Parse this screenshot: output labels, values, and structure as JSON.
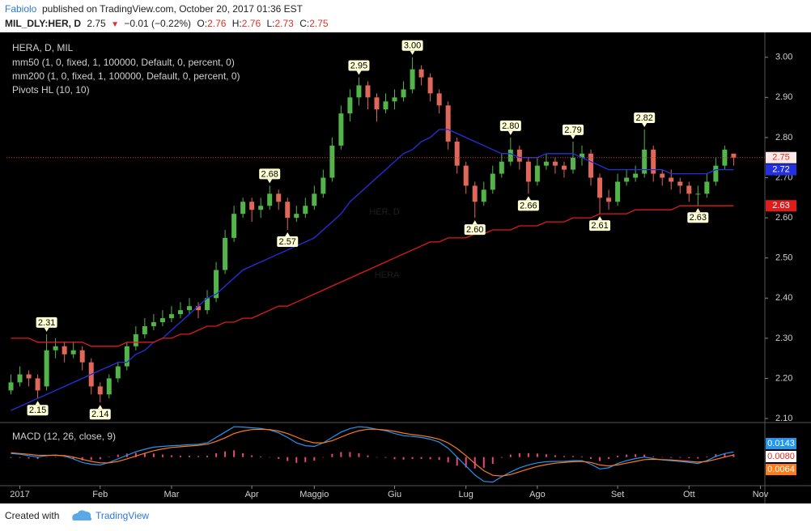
{
  "header": {
    "author": "Fabiolo",
    "published": "published on TradingView.com, October 20, 2017 01:36 EST",
    "symbol": "MIL_DLY:HER, D",
    "arrow": "▼",
    "change": "−0.01 (−0.22%)",
    "o": "O:",
    "h": "H:",
    "l": "L:",
    "c": "C:"
  },
  "chart_data": [
    {
      "type": "candlestick",
      "title": "HERA, D, MIL",
      "watermark": "HER, D",
      "watermark_sub": "HERA",
      "pivot_name": "Pivots HL (10, 10)",
      "up_color": "#53b44a",
      "down_color": "#e0685a",
      "categories": [
        null,
        "2017",
        null,
        null,
        null,
        null,
        null,
        null,
        null,
        null,
        "Feb",
        null,
        null,
        null,
        null,
        null,
        null,
        null,
        "Mar",
        null,
        null,
        null,
        null,
        null,
        null,
        null,
        null,
        "Apr",
        null,
        null,
        null,
        null,
        null,
        null,
        "Maggio",
        null,
        null,
        null,
        null,
        null,
        null,
        null,
        null,
        "Giu",
        null,
        null,
        null,
        null,
        null,
        null,
        null,
        "Lug",
        null,
        null,
        null,
        null,
        null,
        null,
        null,
        "Ago",
        null,
        null,
        null,
        null,
        null,
        null,
        null,
        null,
        "Set",
        null,
        null,
        null,
        null,
        null,
        null,
        null,
        "Ott",
        null,
        null,
        null,
        null,
        null,
        null,
        null,
        "Nov"
      ],
      "open": [
        2.17,
        2.19,
        2.21,
        2.2,
        2.18,
        2.27,
        2.28,
        2.26,
        2.27,
        2.24,
        2.18,
        2.16,
        2.2,
        2.23,
        2.28,
        2.31,
        2.33,
        2.34,
        2.35,
        2.36,
        2.37,
        2.38,
        2.37,
        2.4,
        2.47,
        2.55,
        2.61,
        2.64,
        2.62,
        2.63,
        2.66,
        2.64,
        2.6,
        2.61,
        2.63,
        2.66,
        2.7,
        2.78,
        2.86,
        2.9,
        2.93,
        2.9,
        2.87,
        2.89,
        2.9,
        2.92,
        2.97,
        2.95,
        2.91,
        2.88,
        2.79,
        2.73,
        2.68,
        2.64,
        2.67,
        2.71,
        2.74,
        2.77,
        2.74,
        2.69,
        2.73,
        2.74,
        2.73,
        2.72,
        2.75,
        2.76,
        2.7,
        2.65,
        2.64,
        2.69,
        2.7,
        2.71,
        2.77,
        2.71,
        2.7,
        2.69,
        2.68,
        2.66,
        2.66,
        2.69,
        2.73,
        2.76,
        null,
        null,
        null
      ],
      "high": [
        2.21,
        2.23,
        2.22,
        2.21,
        2.31,
        2.3,
        2.29,
        2.29,
        2.28,
        2.25,
        2.19,
        2.21,
        2.24,
        2.29,
        2.33,
        2.35,
        2.36,
        2.37,
        2.38,
        2.39,
        2.4,
        2.39,
        2.42,
        2.49,
        2.57,
        2.63,
        2.65,
        2.65,
        2.65,
        2.68,
        2.67,
        2.65,
        2.63,
        2.65,
        2.68,
        2.72,
        2.8,
        2.88,
        2.92,
        2.95,
        2.94,
        2.91,
        2.91,
        2.92,
        2.94,
        3.0,
        2.98,
        2.96,
        2.92,
        2.89,
        2.8,
        2.74,
        2.69,
        2.69,
        2.73,
        2.76,
        2.8,
        2.78,
        2.75,
        2.75,
        2.76,
        2.75,
        2.74,
        2.79,
        2.78,
        2.77,
        2.71,
        2.67,
        2.71,
        2.72,
        2.73,
        2.82,
        2.78,
        2.72,
        2.72,
        2.7,
        2.69,
        2.68,
        2.71,
        2.75,
        2.78,
        2.76,
        null,
        null,
        null
      ],
      "low": [
        2.16,
        2.18,
        2.18,
        2.15,
        2.17,
        2.25,
        2.24,
        2.25,
        2.22,
        2.16,
        2.14,
        2.15,
        2.19,
        2.22,
        2.27,
        2.3,
        2.32,
        2.33,
        2.34,
        2.35,
        2.36,
        2.35,
        2.36,
        2.39,
        2.46,
        2.54,
        2.6,
        2.59,
        2.6,
        2.62,
        2.62,
        2.57,
        2.59,
        2.6,
        2.62,
        2.65,
        2.69,
        2.77,
        2.84,
        2.88,
        2.87,
        2.84,
        2.86,
        2.87,
        2.89,
        2.91,
        2.93,
        2.89,
        2.86,
        2.77,
        2.71,
        2.66,
        2.6,
        2.63,
        2.66,
        2.7,
        2.73,
        2.72,
        2.66,
        2.68,
        2.72,
        2.71,
        2.7,
        2.71,
        2.73,
        2.68,
        2.61,
        2.62,
        2.63,
        2.68,
        2.69,
        2.7,
        2.69,
        2.68,
        2.67,
        2.66,
        2.64,
        2.63,
        2.65,
        2.68,
        2.72,
        2.73,
        null,
        null,
        null
      ],
      "close": [
        2.19,
        2.21,
        2.2,
        2.17,
        2.27,
        2.28,
        2.26,
        2.27,
        2.24,
        2.18,
        2.16,
        2.2,
        2.23,
        2.28,
        2.31,
        2.33,
        2.34,
        2.35,
        2.36,
        2.37,
        2.38,
        2.37,
        2.4,
        2.47,
        2.55,
        2.61,
        2.64,
        2.62,
        2.63,
        2.66,
        2.64,
        2.6,
        2.61,
        2.63,
        2.66,
        2.7,
        2.78,
        2.86,
        2.9,
        2.93,
        2.9,
        2.87,
        2.89,
        2.9,
        2.92,
        2.97,
        2.95,
        2.91,
        2.88,
        2.79,
        2.73,
        2.68,
        2.64,
        2.67,
        2.71,
        2.74,
        2.77,
        2.74,
        2.69,
        2.73,
        2.74,
        2.73,
        2.72,
        2.75,
        2.76,
        2.7,
        2.65,
        2.64,
        2.69,
        2.7,
        2.71,
        2.77,
        2.71,
        2.7,
        2.69,
        2.68,
        2.66,
        2.66,
        2.69,
        2.73,
        2.77,
        2.75,
        null,
        null,
        null
      ],
      "series": [
        {
          "name": "mm50 (1, 0, fixed, 1, 100000, Default, 0, percent, 0)",
          "color": "#2430e0",
          "values": [
            2.12,
            2.13,
            2.14,
            2.15,
            2.16,
            2.17,
            2.18,
            2.19,
            2.2,
            2.21,
            2.22,
            2.23,
            2.24,
            2.24,
            2.26,
            2.27,
            2.29,
            2.3,
            2.32,
            2.34,
            2.36,
            2.38,
            2.4,
            2.41,
            2.43,
            2.45,
            2.47,
            2.48,
            2.49,
            2.5,
            2.51,
            2.52,
            2.53,
            2.54,
            2.55,
            2.57,
            2.59,
            2.61,
            2.64,
            2.66,
            2.68,
            2.7,
            2.72,
            2.74,
            2.76,
            2.77,
            2.79,
            2.8,
            2.82,
            2.82,
            2.81,
            2.8,
            2.79,
            2.78,
            2.77,
            2.76,
            2.76,
            2.75,
            2.75,
            2.75,
            2.76,
            2.76,
            2.76,
            2.76,
            2.75,
            2.74,
            2.73,
            2.72,
            2.72,
            2.72,
            2.72,
            2.72,
            2.72,
            2.72,
            2.71,
            2.71,
            2.71,
            2.71,
            2.71,
            2.72,
            2.72,
            2.72,
            null,
            null,
            null
          ]
        },
        {
          "name": "mm200 (1, 0, fixed, 1, 100000, Default, 0, percent, 0)",
          "color": "#e01b1b",
          "values": [
            2.3,
            2.3,
            2.3,
            2.29,
            2.29,
            2.29,
            2.29,
            2.29,
            2.29,
            2.28,
            2.28,
            2.28,
            2.28,
            2.29,
            2.29,
            2.29,
            2.29,
            2.3,
            2.3,
            2.31,
            2.31,
            2.32,
            2.33,
            2.33,
            2.34,
            2.34,
            2.35,
            2.35,
            2.36,
            2.37,
            2.38,
            2.38,
            2.39,
            2.4,
            2.41,
            2.42,
            2.43,
            2.44,
            2.45,
            2.46,
            2.47,
            2.48,
            2.49,
            2.5,
            2.51,
            2.52,
            2.53,
            2.54,
            2.54,
            2.55,
            2.55,
            2.55,
            2.56,
            2.56,
            2.57,
            2.57,
            2.57,
            2.58,
            2.58,
            2.58,
            2.59,
            2.59,
            2.59,
            2.6,
            2.6,
            2.6,
            2.61,
            2.61,
            2.61,
            2.61,
            2.62,
            2.62,
            2.62,
            2.62,
            2.62,
            2.63,
            2.63,
            2.63,
            2.63,
            2.63,
            2.63,
            2.63,
            null,
            null,
            null
          ]
        }
      ],
      "pivot_highs": [
        null,
        null,
        null,
        null,
        2.31,
        null,
        null,
        null,
        null,
        null,
        null,
        null,
        null,
        null,
        null,
        null,
        null,
        null,
        null,
        null,
        null,
        null,
        null,
        null,
        null,
        null,
        null,
        null,
        null,
        2.68,
        null,
        null,
        null,
        null,
        null,
        null,
        null,
        null,
        null,
        2.95,
        null,
        null,
        null,
        null,
        null,
        {
          "value": 3.0,
          "label": "3.00"
        },
        null,
        null,
        null,
        null,
        null,
        null,
        null,
        null,
        null,
        null,
        {
          "value": 2.8,
          "label": "2.80"
        },
        null,
        null,
        null,
        null,
        null,
        null,
        2.79,
        null,
        null,
        null,
        null,
        null,
        null,
        null,
        2.82,
        null,
        null,
        null,
        null,
        null,
        null,
        null,
        null,
        null,
        null,
        null,
        null,
        null
      ],
      "pivot_lows": [
        null,
        null,
        null,
        2.15,
        null,
        null,
        null,
        null,
        null,
        null,
        2.14,
        null,
        null,
        null,
        null,
        null,
        null,
        null,
        null,
        null,
        null,
        null,
        null,
        null,
        null,
        null,
        null,
        null,
        null,
        null,
        null,
        2.57,
        null,
        null,
        null,
        null,
        null,
        null,
        null,
        null,
        null,
        null,
        null,
        null,
        null,
        null,
        null,
        null,
        null,
        null,
        null,
        null,
        {
          "value": 2.6,
          "label": "2.60"
        },
        null,
        null,
        null,
        null,
        null,
        2.66,
        null,
        null,
        null,
        null,
        null,
        null,
        null,
        2.61,
        null,
        null,
        null,
        null,
        null,
        null,
        null,
        null,
        null,
        null,
        2.63,
        null,
        null,
        null,
        null,
        null,
        null,
        null
      ],
      "ylim": [
        2.09,
        3.06
      ],
      "yticks": [
        {
          "value": 2.1,
          "label": "2.10"
        },
        {
          "value": 2.2,
          "label": "2.20"
        },
        {
          "value": 2.3,
          "label": "2.30"
        },
        {
          "value": 2.4,
          "label": "2.40"
        },
        {
          "value": 2.5,
          "label": "2.50"
        },
        {
          "value": 2.6,
          "label": "2.60"
        },
        {
          "value": 2.7,
          "label": "2.70"
        },
        {
          "value": 2.8,
          "label": "2.80"
        },
        {
          "value": 2.9,
          "label": "2.90"
        },
        {
          "value": 3.0,
          "label": "3.00"
        }
      ]
    },
    {
      "type": "macd",
      "title": "MACD (12, 26, close, 9)",
      "ylim": [
        -0.08,
        0.09
      ],
      "macd": {
        "color": "#2196f3",
        "values": [
          0.01,
          0.008,
          0.004,
          0,
          0.004,
          0.006,
          0.003,
          -0.005,
          -0.015,
          -0.02,
          -0.022,
          -0.015,
          -0.005,
          0.005,
          0.015,
          0.022,
          0.028,
          0.03,
          0.032,
          0.033,
          0.035,
          0.036,
          0.04,
          0.055,
          0.07,
          0.085,
          0.084,
          0.082,
          0.08,
          0.076,
          0.068,
          0.055,
          0.04,
          0.032,
          0.03,
          0.04,
          0.055,
          0.07,
          0.08,
          0.085,
          0.083,
          0.078,
          0.074,
          0.066,
          0.06,
          0.058,
          0.055,
          0.05,
          0.042,
          0.025,
          0,
          -0.025,
          -0.05,
          -0.068,
          -0.07,
          -0.055,
          -0.042,
          -0.03,
          -0.022,
          -0.016,
          -0.013,
          -0.012,
          -0.012,
          -0.01,
          -0.01,
          -0.02,
          -0.033,
          -0.03,
          -0.018,
          -0.01,
          -0.004,
          0,
          -0.004,
          -0.008,
          -0.01,
          -0.012,
          -0.015,
          -0.018,
          -0.01,
          0.002,
          0.01,
          0.0143,
          null,
          null,
          null
        ]
      },
      "signal": {
        "color": "#ff7a1a",
        "values": [
          0.012,
          0.01,
          0.008,
          0.005,
          0.005,
          0.005,
          0.004,
          0,
          -0.006,
          -0.012,
          -0.016,
          -0.016,
          -0.012,
          -0.005,
          0.003,
          0.011,
          0.018,
          0.023,
          0.027,
          0.029,
          0.031,
          0.033,
          0.036,
          0.044,
          0.054,
          0.066,
          0.073,
          0.077,
          0.078,
          0.077,
          0.073,
          0.066,
          0.056,
          0.046,
          0.04,
          0.04,
          0.046,
          0.056,
          0.066,
          0.074,
          0.078,
          0.078,
          0.076,
          0.072,
          0.067,
          0.063,
          0.06,
          0.056,
          0.05,
          0.04,
          0.024,
          0.004,
          -0.018,
          -0.038,
          -0.051,
          -0.053,
          -0.049,
          -0.041,
          -0.033,
          -0.026,
          -0.021,
          -0.017,
          -0.015,
          -0.013,
          -0.012,
          -0.015,
          -0.022,
          -0.025,
          -0.022,
          -0.017,
          -0.012,
          -0.007,
          -0.006,
          -0.007,
          -0.008,
          -0.01,
          -0.012,
          -0.014,
          -0.012,
          -0.006,
          0,
          0.0064,
          null,
          null,
          null
        ]
      },
      "histogram": {
        "color": "#e8467c",
        "values": [
          -0.002,
          -0.002,
          -0.004,
          -0.005,
          -0.001,
          0.001,
          -0.001,
          -0.005,
          -0.009,
          -0.008,
          -0.006,
          0.001,
          0.007,
          0.01,
          0.012,
          0.011,
          0.01,
          0.007,
          0.005,
          0.004,
          0.004,
          0.003,
          0.004,
          0.011,
          0.016,
          0.019,
          0.011,
          0.005,
          0.002,
          -0.001,
          -0.005,
          -0.011,
          -0.016,
          -0.014,
          -0.01,
          0,
          0.009,
          0.014,
          0.014,
          0.011,
          0.005,
          0,
          -0.002,
          -0.006,
          -0.007,
          -0.005,
          -0.005,
          -0.006,
          -0.008,
          -0.015,
          -0.024,
          -0.029,
          -0.032,
          -0.03,
          -0.019,
          -0.002,
          0.007,
          0.011,
          0.011,
          0.01,
          0.008,
          0.005,
          0.003,
          0.003,
          0.002,
          -0.005,
          -0.011,
          -0.005,
          0.004,
          0.007,
          0.008,
          0.007,
          0.002,
          -0.001,
          -0.002,
          -0.002,
          -0.003,
          -0.004,
          0.002,
          0.008,
          0.01,
          0.008,
          null,
          null,
          null
        ],
        "value_labels": [
          null,
          null,
          null,
          null,
          null,
          null,
          null,
          null,
          null,
          null,
          null,
          null,
          null,
          null,
          null,
          null,
          null,
          null,
          null,
          null,
          null,
          null,
          null,
          null,
          null,
          null,
          null,
          null,
          null,
          null,
          null,
          null,
          null,
          null,
          null,
          null,
          null,
          null,
          null,
          null,
          null,
          null,
          null,
          null,
          null,
          null,
          null,
          null,
          null,
          null,
          null,
          null,
          null,
          null,
          null,
          null,
          null,
          null,
          null,
          null,
          null,
          null,
          null,
          null,
          null,
          null,
          null,
          null,
          null,
          null,
          null,
          null,
          null,
          null,
          null,
          null,
          null,
          null,
          null,
          null,
          null,
          "0.0080",
          null,
          null,
          null
        ]
      }
    }
  ],
  "footer": {
    "created": "Created with",
    "brand": "TradingView"
  }
}
